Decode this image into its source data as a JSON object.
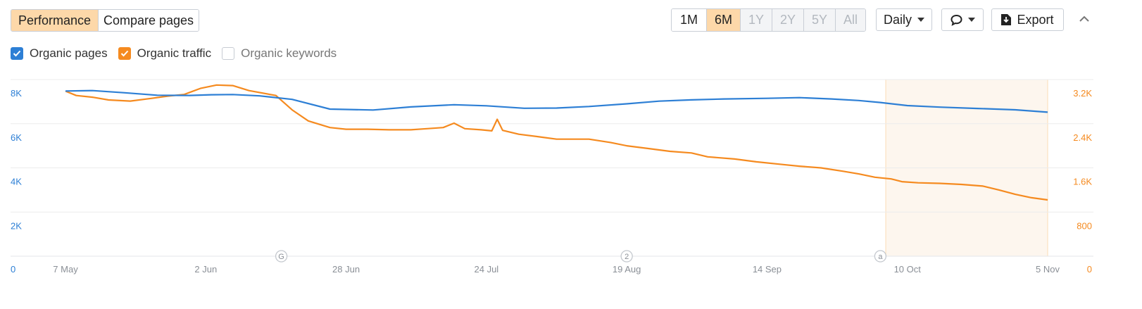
{
  "toolbar": {
    "view_tabs": [
      {
        "label": "Performance",
        "active": true
      },
      {
        "label": "Compare pages",
        "active": false
      }
    ],
    "ranges": [
      {
        "label": "1M",
        "state": "normal"
      },
      {
        "label": "6M",
        "state": "active"
      },
      {
        "label": "1Y",
        "state": "disabled"
      },
      {
        "label": "2Y",
        "state": "disabled"
      },
      {
        "label": "5Y",
        "state": "disabled"
      },
      {
        "label": "All",
        "state": "disabled"
      }
    ],
    "interval_label": "Daily",
    "export_label": "Export"
  },
  "legend": [
    {
      "label": "Organic pages",
      "checked": true,
      "color": "#2d7fd5"
    },
    {
      "label": "Organic traffic",
      "checked": true,
      "color": "#f58a1f"
    },
    {
      "label": "Organic keywords",
      "checked": false,
      "color": "#999999"
    }
  ],
  "annotations": [
    {
      "date": "2023-06-16",
      "label": "G"
    },
    {
      "date": "2023-08-19",
      "label": "2"
    },
    {
      "date": "2023-10-05",
      "label": "a"
    }
  ],
  "chart_data": {
    "type": "line",
    "x_range": [
      "2023-04-28",
      "2023-11-07"
    ],
    "x_ticks": [
      {
        "date": "2023-05-07",
        "label": "7 May"
      },
      {
        "date": "2023-06-02",
        "label": "2 Jun"
      },
      {
        "date": "2023-06-28",
        "label": "28 Jun"
      },
      {
        "date": "2023-07-24",
        "label": "24 Jul"
      },
      {
        "date": "2023-08-19",
        "label": "19 Aug"
      },
      {
        "date": "2023-09-14",
        "label": "14 Sep"
      },
      {
        "date": "2023-10-10",
        "label": "10 Oct"
      },
      {
        "date": "2023-11-05",
        "label": "5 Nov"
      }
    ],
    "y_left": {
      "min": 0,
      "max": 8000,
      "ticks": [
        {
          "value": 0,
          "label": "0"
        },
        {
          "value": 2000,
          "label": "2K"
        },
        {
          "value": 4000,
          "label": "4K"
        },
        {
          "value": 6000,
          "label": "6K"
        },
        {
          "value": 8000,
          "label": "8K"
        }
      ],
      "color": "#2d7fd5"
    },
    "y_right": {
      "min": 0,
      "max": 3200,
      "ticks": [
        {
          "value": 0,
          "label": "0"
        },
        {
          "value": 800,
          "label": "800"
        },
        {
          "value": 1600,
          "label": "1.6K"
        },
        {
          "value": 2400,
          "label": "2.4K"
        },
        {
          "value": 3200,
          "label": "3.2K"
        }
      ],
      "color": "#f58a1f"
    },
    "highlight_range": [
      "2023-10-06",
      "2023-11-05"
    ],
    "grid": true,
    "series": [
      {
        "name": "Organic pages",
        "axis": "left",
        "color": "#2d7fd5",
        "points": [
          [
            "2023-05-07",
            7480
          ],
          [
            "2023-05-12",
            7500
          ],
          [
            "2023-05-18",
            7400
          ],
          [
            "2023-05-24",
            7290
          ],
          [
            "2023-05-30",
            7280
          ],
          [
            "2023-06-03",
            7310
          ],
          [
            "2023-06-07",
            7320
          ],
          [
            "2023-06-12",
            7260
          ],
          [
            "2023-06-18",
            7100
          ],
          [
            "2023-06-25",
            6660
          ],
          [
            "2023-07-03",
            6620
          ],
          [
            "2023-07-10",
            6760
          ],
          [
            "2023-07-18",
            6860
          ],
          [
            "2023-07-24",
            6810
          ],
          [
            "2023-07-31",
            6700
          ],
          [
            "2023-08-06",
            6710
          ],
          [
            "2023-08-12",
            6780
          ],
          [
            "2023-08-19",
            6900
          ],
          [
            "2023-08-25",
            7020
          ],
          [
            "2023-08-31",
            7080
          ],
          [
            "2023-09-06",
            7120
          ],
          [
            "2023-09-14",
            7150
          ],
          [
            "2023-09-20",
            7180
          ],
          [
            "2023-09-26",
            7120
          ],
          [
            "2023-10-01",
            7050
          ],
          [
            "2023-10-05",
            6960
          ],
          [
            "2023-10-10",
            6820
          ],
          [
            "2023-10-16",
            6750
          ],
          [
            "2023-10-23",
            6690
          ],
          [
            "2023-10-30",
            6630
          ],
          [
            "2023-11-05",
            6520
          ]
        ]
      },
      {
        "name": "Organic traffic",
        "axis": "right",
        "color": "#f58a1f",
        "points": [
          [
            "2023-05-07",
            2990
          ],
          [
            "2023-05-09",
            2910
          ],
          [
            "2023-05-12",
            2880
          ],
          [
            "2023-05-15",
            2830
          ],
          [
            "2023-05-19",
            2810
          ],
          [
            "2023-05-23",
            2860
          ],
          [
            "2023-05-26",
            2900
          ],
          [
            "2023-05-29",
            2930
          ],
          [
            "2023-06-01",
            3040
          ],
          [
            "2023-06-04",
            3100
          ],
          [
            "2023-06-07",
            3090
          ],
          [
            "2023-06-10",
            3000
          ],
          [
            "2023-06-15",
            2910
          ],
          [
            "2023-06-18",
            2650
          ],
          [
            "2023-06-21",
            2450
          ],
          [
            "2023-06-25",
            2330
          ],
          [
            "2023-06-28",
            2300
          ],
          [
            "2023-07-02",
            2300
          ],
          [
            "2023-07-06",
            2290
          ],
          [
            "2023-07-10",
            2290
          ],
          [
            "2023-07-13",
            2310
          ],
          [
            "2023-07-16",
            2330
          ],
          [
            "2023-07-18",
            2410
          ],
          [
            "2023-07-20",
            2310
          ],
          [
            "2023-07-23",
            2290
          ],
          [
            "2023-07-25",
            2270
          ],
          [
            "2023-07-26",
            2480
          ],
          [
            "2023-07-27",
            2280
          ],
          [
            "2023-07-30",
            2210
          ],
          [
            "2023-08-03",
            2160
          ],
          [
            "2023-08-06",
            2120
          ],
          [
            "2023-08-12",
            2120
          ],
          [
            "2023-08-16",
            2060
          ],
          [
            "2023-08-19",
            2000
          ],
          [
            "2023-08-23",
            1950
          ],
          [
            "2023-08-27",
            1900
          ],
          [
            "2023-08-31",
            1870
          ],
          [
            "2023-09-03",
            1800
          ],
          [
            "2023-09-08",
            1760
          ],
          [
            "2023-09-12",
            1710
          ],
          [
            "2023-09-17",
            1660
          ],
          [
            "2023-09-20",
            1630
          ],
          [
            "2023-09-24",
            1600
          ],
          [
            "2023-09-28",
            1540
          ],
          [
            "2023-10-01",
            1490
          ],
          [
            "2023-10-04",
            1430
          ],
          [
            "2023-10-07",
            1400
          ],
          [
            "2023-10-09",
            1350
          ],
          [
            "2023-10-12",
            1330
          ],
          [
            "2023-10-16",
            1320
          ],
          [
            "2023-10-20",
            1300
          ],
          [
            "2023-10-24",
            1270
          ],
          [
            "2023-10-27",
            1200
          ],
          [
            "2023-10-30",
            1120
          ],
          [
            "2023-11-02",
            1060
          ],
          [
            "2023-11-05",
            1020
          ]
        ]
      }
    ]
  }
}
